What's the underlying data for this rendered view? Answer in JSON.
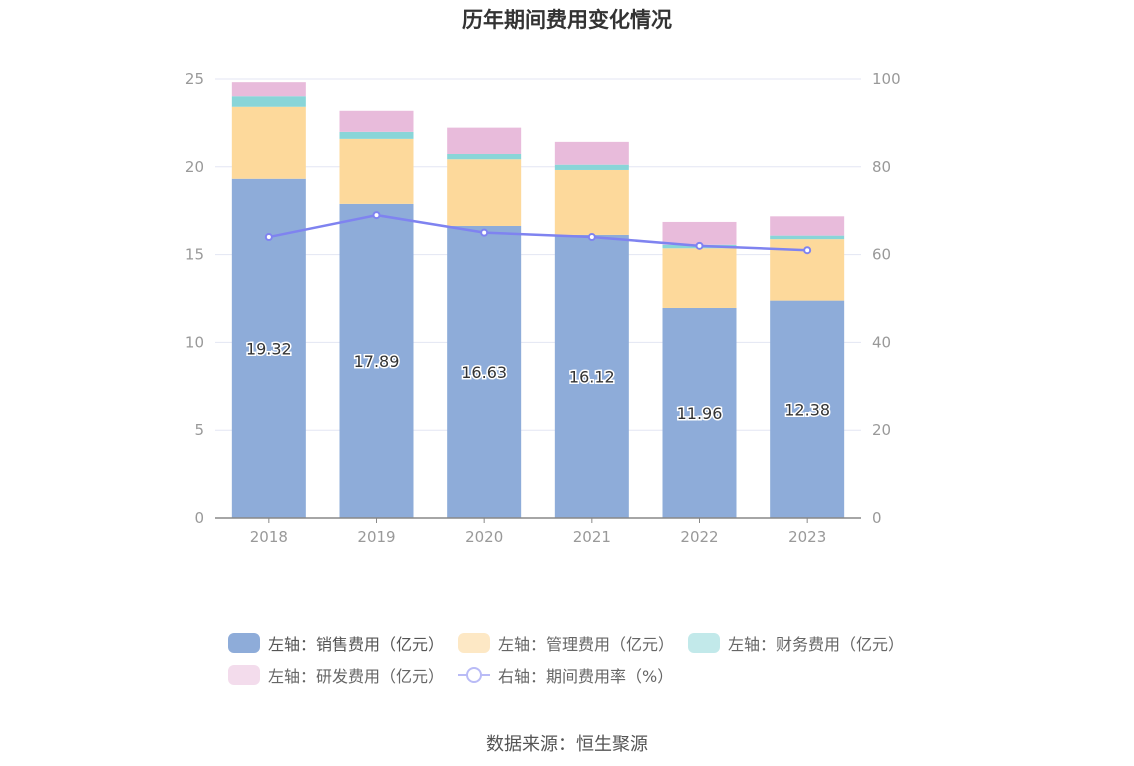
{
  "title": "历年期间费用变化情况",
  "source": "数据来源：恒生聚源",
  "colors": {
    "sales": "#8eacd9",
    "admin": "#fdd99b",
    "finance": "#89d5d8",
    "rnd": "#e8bbdb",
    "ratio_line": "#7f83f0",
    "axis_text": "#999999",
    "grid": "#e3e6f3"
  },
  "chart_data": {
    "type": "bar",
    "stacked": true,
    "categories": [
      "2018",
      "2019",
      "2020",
      "2021",
      "2022",
      "2023"
    ],
    "left_axis": {
      "min": 0,
      "max": 25,
      "ticks": [
        "0",
        "5",
        "10",
        "15",
        "20",
        "25"
      ]
    },
    "right_axis": {
      "min": 0,
      "max": 100,
      "ticks": [
        "0",
        "20",
        "40",
        "60",
        "80",
        "100"
      ]
    },
    "series": [
      {
        "name": "左轴：销售费用（亿元）",
        "type": "bar",
        "axis": "left",
        "values": [
          19.32,
          17.89,
          16.63,
          16.12,
          11.96,
          12.38
        ],
        "data_labels": [
          "19.32",
          "17.89",
          "16.63",
          "16.12",
          "11.96",
          "12.38"
        ]
      },
      {
        "name": "左轴：管理费用（亿元）",
        "type": "bar",
        "axis": "left",
        "values": [
          4.1,
          3.7,
          3.8,
          3.7,
          3.4,
          3.5
        ]
      },
      {
        "name": "左轴：财务费用（亿元）",
        "type": "bar",
        "axis": "left",
        "values": [
          0.6,
          0.4,
          0.3,
          0.3,
          0.2,
          0.2
        ]
      },
      {
        "name": "左轴：研发费用（亿元）",
        "type": "bar",
        "axis": "left",
        "values": [
          0.8,
          1.2,
          1.5,
          1.3,
          1.3,
          1.1
        ]
      },
      {
        "name": "右轴：期间费用率（%）",
        "type": "line",
        "axis": "right",
        "values": [
          64,
          69,
          65,
          64,
          62,
          61
        ]
      }
    ],
    "grid": true,
    "legend_position": "bottom"
  }
}
